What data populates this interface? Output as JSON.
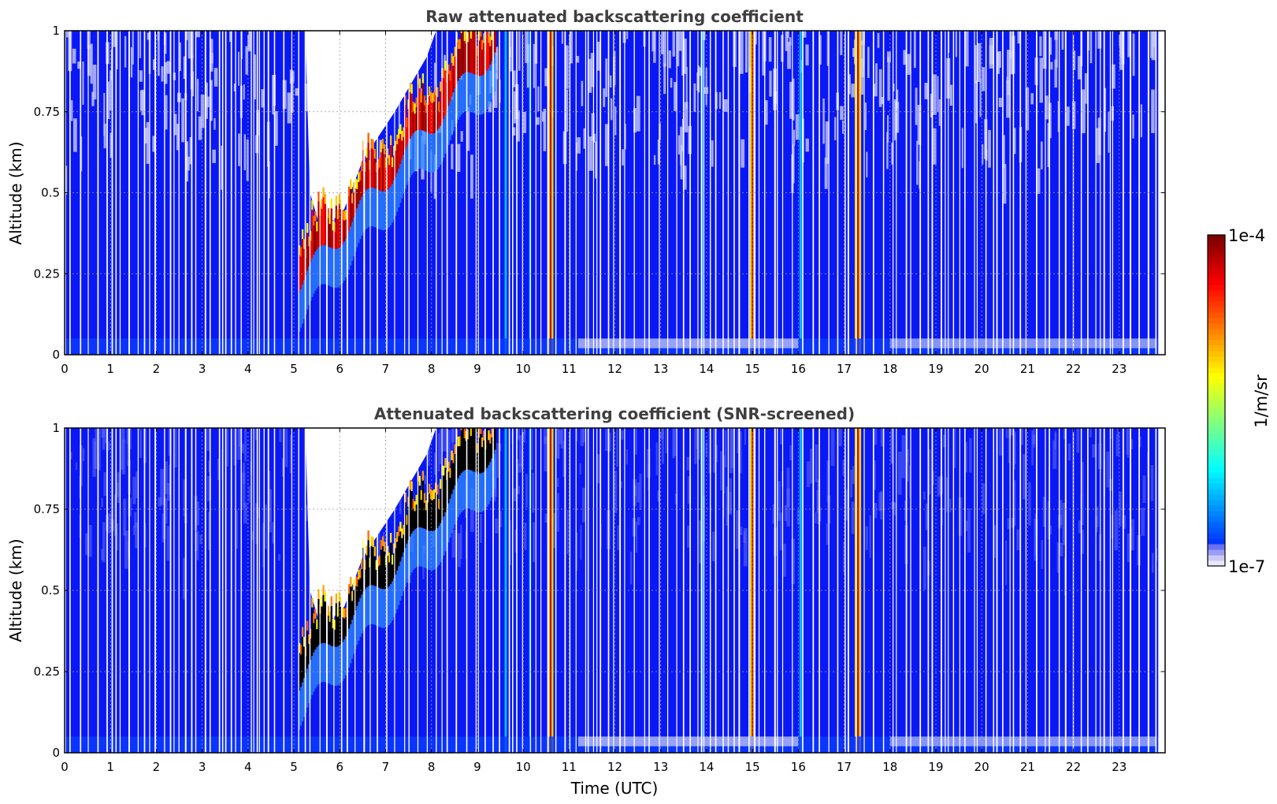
{
  "chart_data": [
    {
      "type": "heatmap",
      "title": "Raw attenuated backscattering coefficient",
      "xlabel": "",
      "ylabel": "Altitude (km)",
      "xlim": [
        0,
        24
      ],
      "ylim": [
        0,
        1
      ],
      "grid": true,
      "xticks": [
        0,
        1,
        2,
        3,
        4,
        5,
        6,
        7,
        8,
        9,
        10,
        11,
        12,
        13,
        14,
        15,
        16,
        17,
        18,
        19,
        20,
        21,
        22,
        23
      ],
      "xtick_labels": [
        "0",
        "1",
        "2",
        "3",
        "4",
        "5",
        "6",
        "7",
        "8",
        "9",
        "10",
        "11",
        "12",
        "13",
        "14",
        "15",
        "16",
        "17",
        "18",
        "19",
        "20",
        "21",
        "22",
        "23"
      ],
      "yticks": [
        0,
        0.25,
        0.5,
        0.75,
        1
      ],
      "ytick_labels": [
        "0",
        "0.25",
        "0.5",
        "0.75",
        "1"
      ],
      "background_level": "blue (~1e-6 1/m/sr)",
      "features": [
        {
          "name": "rising aerosol/cloud layer",
          "time_start": 5.1,
          "time_end": 9.3,
          "altitude_start_km": 0.25,
          "altitude_end_km": 1.0,
          "intensity": "high"
        },
        {
          "name": "cloud column",
          "time": 10.6,
          "intensity": "high"
        },
        {
          "name": "cloud column",
          "time": 15.0,
          "intensity": "high"
        },
        {
          "name": "cloud column",
          "time": 17.3,
          "intensity": "high"
        }
      ]
    },
    {
      "type": "heatmap",
      "title": "Attenuated backscattering coefficient (SNR-screened)",
      "xlabel": "Time (UTC)",
      "ylabel": "Altitude (km)",
      "xlim": [
        0,
        24
      ],
      "ylim": [
        0,
        1
      ],
      "grid": true,
      "xticks": [
        0,
        1,
        2,
        3,
        4,
        5,
        6,
        7,
        8,
        9,
        10,
        11,
        12,
        13,
        14,
        15,
        16,
        17,
        18,
        19,
        20,
        21,
        22,
        23
      ],
      "xtick_labels": [
        "0",
        "1",
        "2",
        "3",
        "4",
        "5",
        "6",
        "7",
        "8",
        "9",
        "10",
        "11",
        "12",
        "13",
        "14",
        "15",
        "16",
        "17",
        "18",
        "19",
        "20",
        "21",
        "22",
        "23"
      ],
      "yticks": [
        0,
        0.25,
        0.5,
        0.75,
        1
      ],
      "ytick_labels": [
        "0",
        "0.25",
        "0.5",
        "0.75",
        "1"
      ],
      "background_level": "blue (~1e-6 1/m/sr)",
      "features": [
        {
          "name": "rising aerosol/cloud layer (saturated, shown black)",
          "time_start": 5.1,
          "time_end": 9.3,
          "altitude_start_km": 0.25,
          "altitude_end_km": 1.0,
          "intensity": "saturated"
        },
        {
          "name": "cloud column",
          "time": 10.6,
          "intensity": "high"
        },
        {
          "name": "cloud column",
          "time": 15.0,
          "intensity": "high"
        },
        {
          "name": "cloud column",
          "time": 17.3,
          "intensity": "high"
        }
      ]
    }
  ],
  "colorbar": {
    "label": "1/m/sr",
    "max_label": "1e-4",
    "min_label": "1e-7",
    "colormap": "jet",
    "colors": [
      "#e6e6fa",
      "#3a3aff",
      "#0000ff",
      "#0050ff",
      "#00a8ff",
      "#00ffff",
      "#7dff7a",
      "#ffff00",
      "#ffaa00",
      "#ff3300",
      "#c80000",
      "#800000"
    ]
  }
}
